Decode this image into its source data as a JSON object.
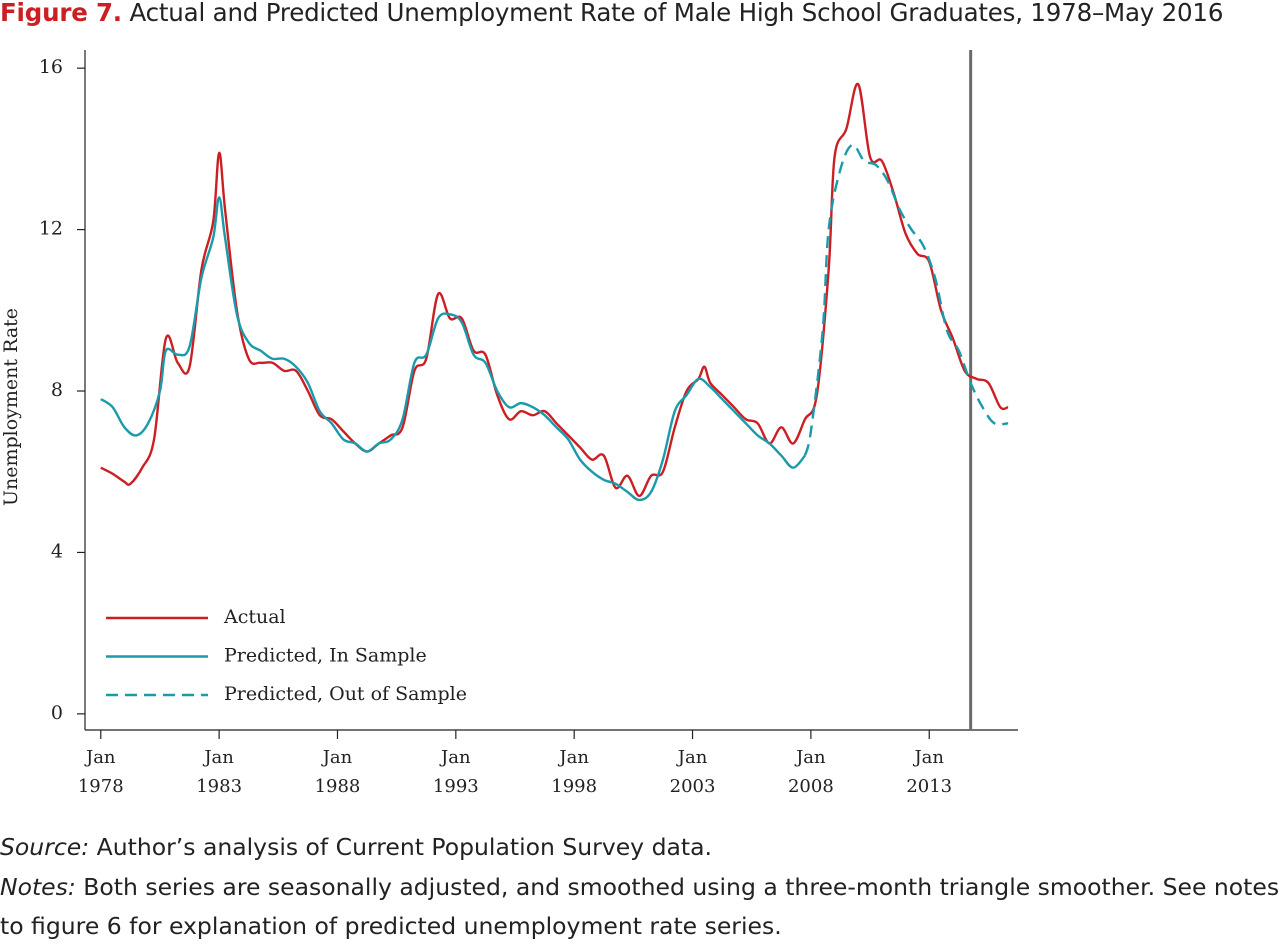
{
  "chart_data": {
    "type": "line",
    "title_lead": "Figure 7.",
    "title": "Actual and Predicted Unemployment Rate of Male High School Graduates, 1978–May 2016",
    "ylabel": "Unemployment Rate",
    "xlim": [
      "1977-05",
      "2016-10"
    ],
    "ylim": [
      -0.4,
      16.45
    ],
    "yticks": [
      0,
      4,
      8,
      12,
      16
    ],
    "xticks": [
      {
        "value": "1978-01",
        "label": "Jan 1978"
      },
      {
        "value": "1983-01",
        "label": "Jan 1983"
      },
      {
        "value": "1988-01",
        "label": "Jan 1988"
      },
      {
        "value": "1993-01",
        "label": "Jan 1993"
      },
      {
        "value": "1998-01",
        "label": "Jan 1998"
      },
      {
        "value": "2003-01",
        "label": "Jan 2003"
      },
      {
        "value": "2008-01",
        "label": "Jan 2008"
      },
      {
        "value": "2013-01",
        "label": "Jan 2013"
      }
    ],
    "vline": "2014-10",
    "vline_color": "#6b6b6b",
    "legend": "lower left",
    "series": [
      {
        "name": "Actual",
        "color": "#cc1f24",
        "dash": false,
        "x": [
          "1978-01",
          "1978-07",
          "1979-01",
          "1979-04",
          "1979-10",
          "1980-04",
          "1980-10",
          "1981-04",
          "1981-10",
          "1982-04",
          "1982-10",
          "1983-01",
          "1983-04",
          "1983-10",
          "1984-04",
          "1984-10",
          "1985-04",
          "1985-10",
          "1986-04",
          "1986-10",
          "1987-04",
          "1987-10",
          "1988-04",
          "1988-10",
          "1989-04",
          "1989-10",
          "1990-04",
          "1990-10",
          "1991-04",
          "1991-10",
          "1992-04",
          "1992-10",
          "1993-04",
          "1993-10",
          "1994-04",
          "1994-10",
          "1995-04",
          "1995-10",
          "1996-04",
          "1996-10",
          "1997-04",
          "1997-10",
          "1998-04",
          "1998-10",
          "1999-04",
          "1999-10",
          "2000-04",
          "2000-10",
          "2001-04",
          "2001-10",
          "2002-04",
          "2002-10",
          "2003-04",
          "2003-07",
          "2003-10",
          "2004-04",
          "2004-10",
          "2005-04",
          "2005-10",
          "2006-04",
          "2006-10",
          "2007-04",
          "2007-10",
          "2008-04",
          "2008-10",
          "2009-01",
          "2009-07",
          "2010-01",
          "2010-07",
          "2011-01",
          "2011-07",
          "2012-01",
          "2012-07",
          "2013-01",
          "2013-07",
          "2014-01",
          "2014-07",
          "2015-01",
          "2015-07",
          "2016-01",
          "2016-05"
        ],
        "values": [
          6.1,
          5.95,
          5.75,
          5.7,
          6.1,
          6.8,
          9.3,
          8.7,
          8.6,
          11.0,
          12.2,
          13.9,
          12.5,
          10.0,
          8.8,
          8.7,
          8.7,
          8.5,
          8.5,
          8.0,
          7.4,
          7.3,
          7.0,
          6.7,
          6.5,
          6.7,
          6.9,
          7.1,
          8.5,
          8.8,
          10.4,
          9.8,
          9.8,
          9.0,
          8.9,
          7.9,
          7.3,
          7.5,
          7.4,
          7.5,
          7.2,
          6.9,
          6.6,
          6.3,
          6.4,
          5.6,
          5.9,
          5.4,
          5.9,
          6.0,
          7.1,
          8.0,
          8.3,
          8.6,
          8.2,
          7.9,
          7.6,
          7.3,
          7.2,
          6.7,
          7.1,
          6.7,
          7.3,
          7.9,
          11.0,
          13.8,
          14.5,
          15.6,
          13.8,
          13.7,
          12.9,
          11.9,
          11.4,
          11.2,
          10.0,
          9.3,
          8.5,
          8.3,
          8.2,
          7.6,
          7.6
        ]
      },
      {
        "name": "Predicted, In Sample",
        "color": "#1a9aaa",
        "dash": false,
        "x": [
          "1978-01",
          "1978-07",
          "1979-01",
          "1979-07",
          "1980-01",
          "1980-07",
          "1980-10",
          "1981-04",
          "1981-10",
          "1982-04",
          "1982-10",
          "1983-01",
          "1983-04",
          "1983-10",
          "1984-04",
          "1984-10",
          "1985-04",
          "1985-10",
          "1986-04",
          "1986-10",
          "1987-04",
          "1987-10",
          "1988-04",
          "1988-10",
          "1989-04",
          "1989-10",
          "1990-04",
          "1990-10",
          "1991-04",
          "1991-10",
          "1992-04",
          "1992-10",
          "1993-04",
          "1993-10",
          "1994-04",
          "1994-10",
          "1995-04",
          "1995-10",
          "1996-04",
          "1996-10",
          "1997-04",
          "1997-10",
          "1998-04",
          "1998-10",
          "1999-04",
          "1999-10",
          "2000-04",
          "2000-10",
          "2001-04",
          "2001-10",
          "2002-04",
          "2002-10",
          "2003-04",
          "2003-10",
          "2004-04",
          "2004-10",
          "2005-04",
          "2005-10",
          "2006-04",
          "2006-10",
          "2007-04",
          "2007-10"
        ],
        "values": [
          7.8,
          7.6,
          7.1,
          6.9,
          7.2,
          8.0,
          9.0,
          8.9,
          9.1,
          10.8,
          11.8,
          12.8,
          11.8,
          9.9,
          9.2,
          9.0,
          8.8,
          8.8,
          8.6,
          8.2,
          7.5,
          7.2,
          6.8,
          6.7,
          6.5,
          6.7,
          6.8,
          7.3,
          8.7,
          8.9,
          9.8,
          9.9,
          9.7,
          8.9,
          8.7,
          8.0,
          7.6,
          7.7,
          7.6,
          7.4,
          7.1,
          6.8,
          6.3,
          6.0,
          5.8,
          5.7,
          5.5,
          5.3,
          5.5,
          6.3,
          7.5,
          7.9,
          8.3,
          8.1,
          7.8,
          7.5,
          7.2,
          6.9,
          6.7,
          6.4,
          6.1,
          6.4
        ]
      },
      {
        "name": "Predicted, Out of Sample",
        "color": "#1a9aaa",
        "dash": true,
        "x": [
          "2007-10",
          "2008-01",
          "2008-07",
          "2008-10",
          "2009-04",
          "2009-10",
          "2010-04",
          "2010-10",
          "2011-04",
          "2011-10",
          "2012-04",
          "2012-10",
          "2013-04",
          "2013-10",
          "2014-04",
          "2014-10",
          "2015-04",
          "2015-10",
          "2016-05"
        ],
        "values": [
          6.4,
          7.0,
          9.5,
          12.0,
          13.5,
          14.1,
          13.7,
          13.6,
          13.2,
          12.5,
          12.0,
          11.6,
          10.8,
          9.5,
          9.0,
          8.2,
          7.6,
          7.2,
          7.2
        ]
      }
    ]
  },
  "footer": {
    "source_label": "Source:",
    "source": "Author’s analysis of Current Population Survey data.",
    "notes_label": "Notes:",
    "notes": "Both series are seasonally adjusted, and smoothed using a three-month triangle smoother. See notes to figure 6 for explanation of predicted unemployment rate series."
  }
}
